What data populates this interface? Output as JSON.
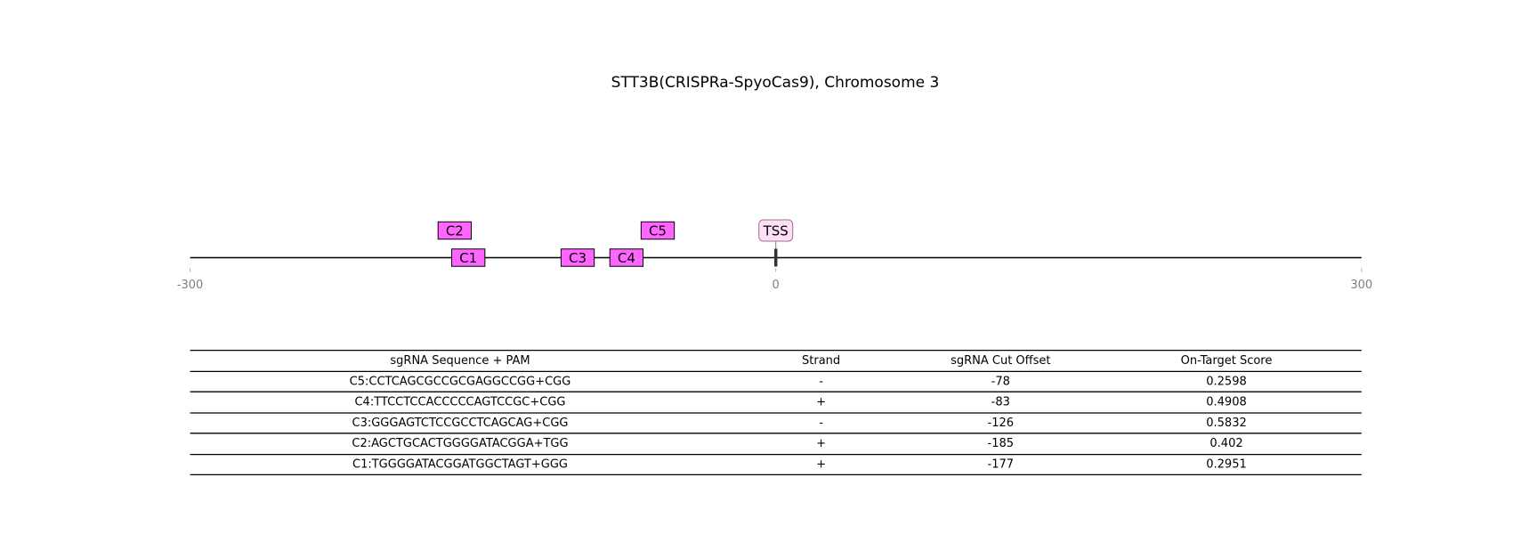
{
  "chart_data": {
    "type": "track",
    "title": "STT3B(CRISPRa-SpyoCas9), Chromosome 3",
    "xlim": [
      -300,
      300
    ],
    "xticks": [
      -300,
      0,
      300
    ],
    "color": "#ff66ff",
    "features": [
      {
        "name": "C1",
        "start": -166,
        "end": -149
      },
      {
        "name": "C2",
        "start": -173,
        "end": -156
      },
      {
        "name": "C3",
        "start": -110,
        "end": -93
      },
      {
        "name": "C4",
        "start": -85,
        "end": -68
      },
      {
        "name": "C5",
        "start": -69,
        "end": -52
      }
    ],
    "marker": {
      "label": "TSS",
      "position": 0
    }
  },
  "table": {
    "columns": [
      "sgRNA Sequence + PAM",
      "Strand",
      "sgRNA Cut Offset",
      "On-Target Score"
    ],
    "rows": [
      [
        "C5:CCTCAGCGCCGCGAGGCCGG+CGG",
        "-",
        -78,
        0.2598
      ],
      [
        "C4:TTCCTCCACCCCCAGTCCGC+CGG",
        "+",
        -83,
        0.4908
      ],
      [
        "C3:GGGAGTCTCCGCCTCAGCAG+CGG",
        "-",
        -126,
        0.5832
      ],
      [
        "C2:AGCTGCACTGGGGATACGGA+TGG",
        "+",
        -185,
        0.402
      ],
      [
        "C1:TGGGGATACGGATGGCTAGT+GGG",
        "+",
        -177,
        0.2951
      ]
    ]
  }
}
